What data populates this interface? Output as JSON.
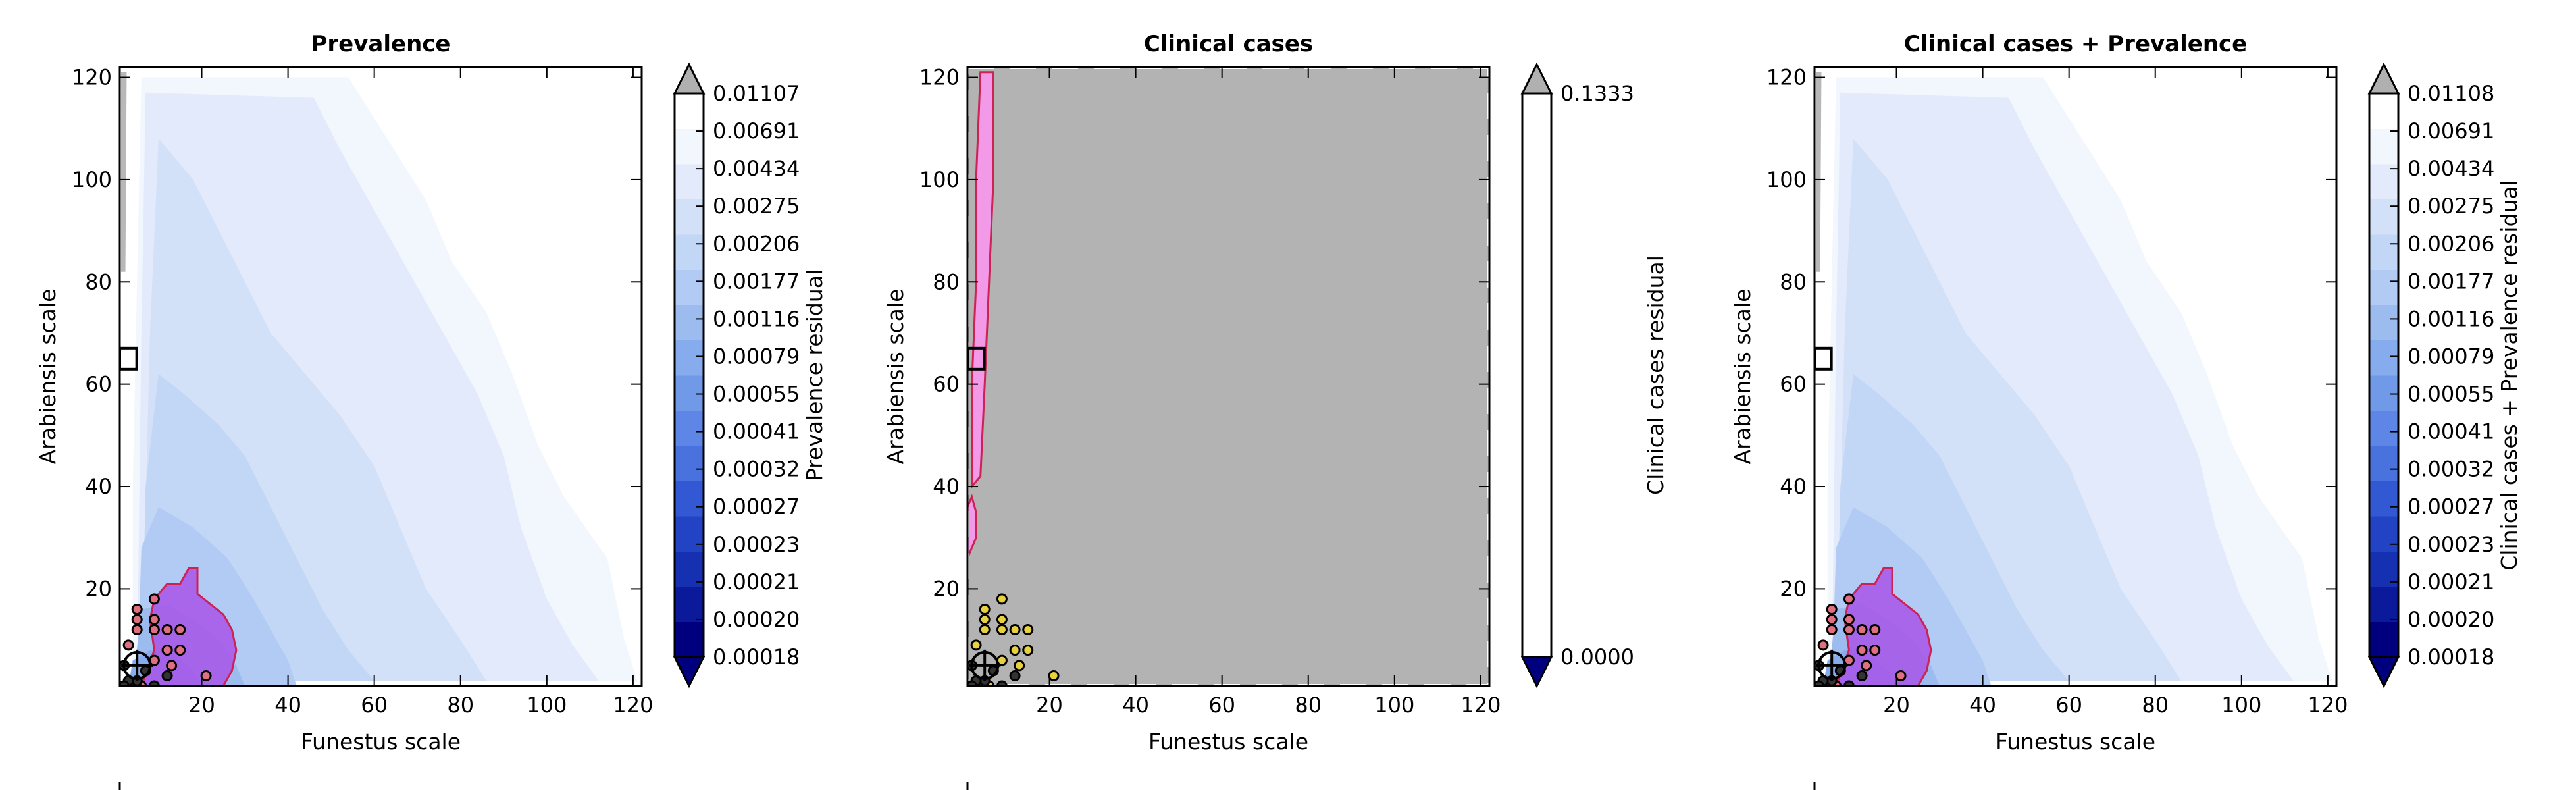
{
  "chart_data": [
    {
      "type": "heatmap",
      "title": "Prevalence",
      "xlabel": "Funestus scale",
      "ylabel": "Arabiensis scale",
      "xlim": [
        1,
        122
      ],
      "ylim": [
        1,
        122
      ],
      "xticks": [
        20,
        40,
        60,
        80,
        100,
        120
      ],
      "yticks": [
        20,
        40,
        60,
        80,
        100,
        120
      ],
      "colorbar": {
        "label": "Prevalence residual",
        "levels": [
          "0.00018",
          "0.00020",
          "0.00021",
          "0.00023",
          "0.00027",
          "0.00032",
          "0.00041",
          "0.00055",
          "0.00079",
          "0.00116",
          "0.00177",
          "0.00206",
          "0.00275",
          "0.00434",
          "0.00691",
          "0.01107"
        ],
        "colors": [
          "#00007f",
          "#0a1a9a",
          "#1530b0",
          "#2244c4",
          "#3358d4",
          "#4a72de",
          "#5e86e6",
          "#709ae8",
          "#86acee",
          "#9cbcf0",
          "#b2cbf4",
          "#c2d6f6",
          "#d2e0f8",
          "#e2eafb",
          "#f2f6fd",
          "#ffffff"
        ],
        "extend_low_color": "#00007f",
        "extend_high_color": "#b0b0b0"
      },
      "good_region_color": "#a855e8",
      "good_region_edge": "#cc2255",
      "ruler_box": {
        "x": 3,
        "y": 65
      },
      "best_fit": {
        "x": 5,
        "y": 5
      }
    },
    {
      "type": "heatmap",
      "title": "Clinical cases",
      "xlabel": "Funestus scale",
      "ylabel": "Arabiensis scale",
      "xlim": [
        1,
        122
      ],
      "ylim": [
        1,
        122
      ],
      "xticks": [
        20,
        40,
        60,
        80,
        100,
        120
      ],
      "yticks": [
        20,
        40,
        60,
        80,
        100,
        120
      ],
      "colorbar": {
        "label": "Clinical cases residual",
        "levels": [
          "0.0000",
          "0.1333"
        ],
        "colors": [
          "#ffffff"
        ],
        "extend_low_color": "#00007f",
        "extend_high_color": "#b0b0b0"
      },
      "background_color": "#b3b3b3",
      "good_region_color": "#f29ae8",
      "good_region_edge": "#cc2255",
      "ruler_box": {
        "x": 3,
        "y": 65
      },
      "best_fit": {
        "x": 5,
        "y": 5
      }
    },
    {
      "type": "heatmap",
      "title": "Clinical cases + Prevalence",
      "xlabel": "Funestus scale",
      "ylabel": "Arabiensis scale",
      "xlim": [
        1,
        122
      ],
      "ylim": [
        1,
        122
      ],
      "xticks": [
        20,
        40,
        60,
        80,
        100,
        120
      ],
      "yticks": [
        20,
        40,
        60,
        80,
        100,
        120
      ],
      "colorbar": {
        "label": "Clinical cases + Prevalence residual",
        "levels": [
          "0.00018",
          "0.00020",
          "0.00021",
          "0.00023",
          "0.00027",
          "0.00032",
          "0.00041",
          "0.00055",
          "0.00079",
          "0.00116",
          "0.00177",
          "0.00206",
          "0.00275",
          "0.00434",
          "0.00691",
          "0.01108"
        ],
        "colors": [
          "#00007f",
          "#0a1a9a",
          "#1530b0",
          "#2244c4",
          "#3358d4",
          "#4a72de",
          "#5e86e6",
          "#709ae8",
          "#86acee",
          "#9cbcf0",
          "#b2cbf4",
          "#c2d6f6",
          "#d2e0f8",
          "#e2eafb",
          "#f2f6fd",
          "#ffffff"
        ],
        "extend_low_color": "#00007f",
        "extend_high_color": "#b0b0b0"
      },
      "good_region_color": "#a855e8",
      "good_region_edge": "#cc2255",
      "ruler_box": {
        "x": 3,
        "y": 65
      },
      "best_fit": {
        "x": 5,
        "y": 5
      }
    }
  ]
}
